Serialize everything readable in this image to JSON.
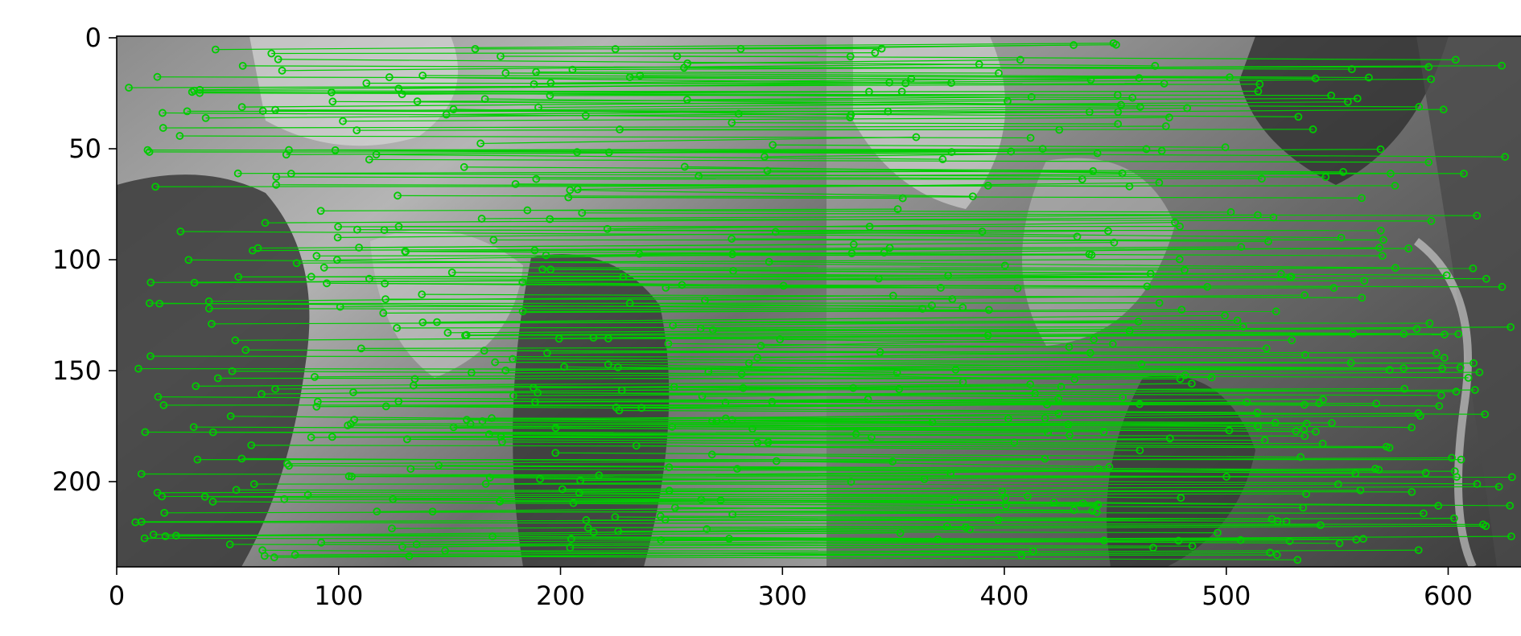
{
  "figure": {
    "x_ticks": [
      "0",
      "100",
      "200",
      "300",
      "400",
      "500",
      "600"
    ],
    "y_ticks": [
      "0",
      "50",
      "100",
      "150",
      "200"
    ],
    "x_range": [
      0,
      640
    ],
    "y_range": [
      0,
      240
    ],
    "y_inverted": true,
    "image_type": "grayscale aerial photo pair, side by side",
    "match_color": "#00cc00",
    "axes_color": "#000000",
    "background_color": "#ffffff"
  }
}
